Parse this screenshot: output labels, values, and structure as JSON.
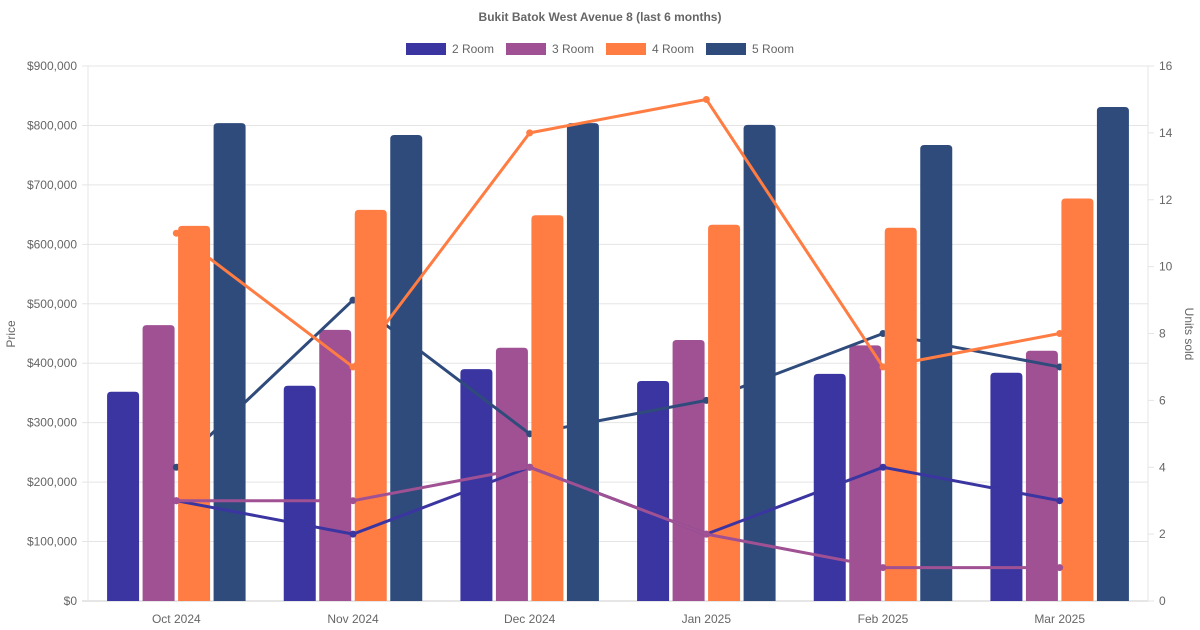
{
  "chart_data": {
    "type": "bar",
    "title": "Bukit Batok West Avenue 8 (last 6 months)",
    "categories": [
      "Oct 2024",
      "Nov 2024",
      "Dec 2024",
      "Jan 2025",
      "Feb 2025",
      "Mar 2025"
    ],
    "ylabel": "Price",
    "y2label": "Units sold",
    "ylim": [
      0,
      900000
    ],
    "y2lim": [
      0,
      16
    ],
    "yticks": [
      "$0",
      "$100,000",
      "$200,000",
      "$300,000",
      "$400,000",
      "$500,000",
      "$600,000",
      "$700,000",
      "$800,000",
      "$900,000"
    ],
    "y2ticks": [
      "0",
      "2",
      "4",
      "6",
      "8",
      "10",
      "12",
      "14",
      "16"
    ],
    "grid": true,
    "legend_position": "top",
    "series": [
      {
        "name": "2 Room",
        "color": "#3a35a0",
        "price": [
          352000,
          362000,
          390000,
          370000,
          382000,
          384000
        ],
        "units": [
          3,
          2,
          4,
          2,
          4,
          3
        ]
      },
      {
        "name": "3 Room",
        "color": "#a05193",
        "price": [
          464000,
          456000,
          426000,
          439000,
          430000,
          421000
        ],
        "units": [
          3,
          3,
          4,
          2,
          1,
          1
        ]
      },
      {
        "name": "4 Room",
        "color": "#ff7c43",
        "price": [
          631000,
          658000,
          649000,
          633000,
          628000,
          677000
        ],
        "units": [
          11,
          7,
          14,
          15,
          7,
          8
        ]
      },
      {
        "name": "5 Room",
        "color": "#2f4b7c",
        "price": [
          804000,
          784000,
          804000,
          801000,
          767000,
          831000
        ],
        "units": [
          4,
          9,
          5,
          6,
          8,
          7
        ]
      }
    ]
  }
}
